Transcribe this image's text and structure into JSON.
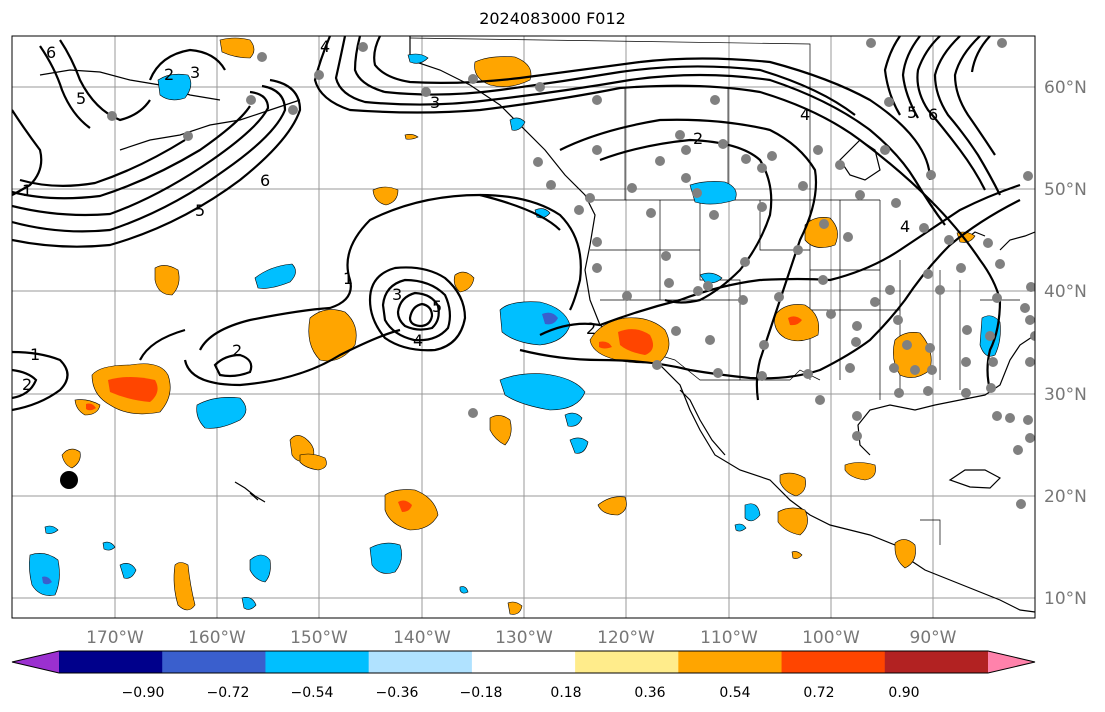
{
  "title": "2024083000 F012",
  "lon_labels": [
    "170°W",
    "160°W",
    "150°W",
    "140°W",
    "130°W",
    "120°W",
    "110°W",
    "100°W",
    "90°W"
  ],
  "lat_labels": [
    "60°N",
    "50°N",
    "40°N",
    "30°N",
    "20°N",
    "10°N"
  ],
  "colorbar": {
    "ticks": [
      "−0.90",
      "−0.72",
      "−0.54",
      "−0.36",
      "−0.18",
      "0.18",
      "0.36",
      "0.54",
      "0.72",
      "0.90"
    ],
    "colors": [
      "#9b30d0",
      "#00008b",
      "#3a5fcd",
      "#00bfff",
      "#b0e2ff",
      "#ffffff",
      "#ffec8b",
      "#ffa500",
      "#ff4500",
      "#b22222",
      "#ff82ab"
    ]
  },
  "contour_labels": [
    "6",
    "5",
    "4",
    "3",
    "2",
    "1",
    "1",
    "2",
    "3",
    "4",
    "5",
    "2",
    "2",
    "3",
    "4",
    "5",
    "6",
    "1",
    "2",
    "4",
    "5",
    "6"
  ],
  "colors": {
    "land_line": "#000000",
    "grid": "#999999",
    "station": "#808080",
    "positive": "#ffa500",
    "positive_strong": "#ff4500",
    "negative": "#00bfff",
    "negative_strong": "#3a5fcd"
  }
}
